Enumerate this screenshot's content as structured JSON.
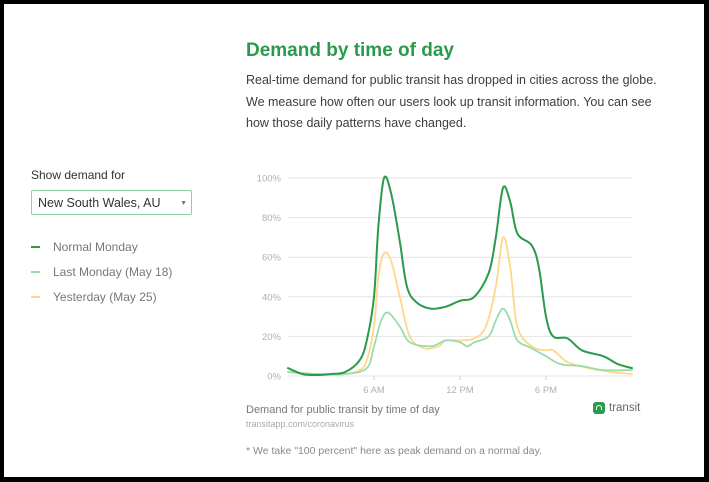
{
  "header": {
    "title": "Demand by time of day",
    "intro": "Real-time demand for public transit has dropped in cities across the globe. We measure how often our users look up transit information. You can see how those daily patterns have changed."
  },
  "controls": {
    "show_label": "Show demand for",
    "region_selected": "New South Wales, AU"
  },
  "legend": [
    {
      "label": "Normal Monday",
      "color": "#2a9a4c"
    },
    {
      "label": "Last Monday (May 18)",
      "color": "#9bdca9"
    },
    {
      "label": "Yesterday (May 25)",
      "color": "#fdd889"
    }
  ],
  "footer": {
    "caption": "Demand for public transit by time of day",
    "source": "transitapp.com/coronavirus",
    "brand": "transit",
    "footnote": "* We take \"100 percent\" here as peak demand on a normal day."
  },
  "chart_data": {
    "type": "line",
    "xlabel": "",
    "ylabel": "",
    "x_range_hours": [
      0,
      24
    ],
    "ylim": [
      0,
      100
    ],
    "y_ticks": [
      "0%",
      "20%",
      "40%",
      "60%",
      "80%",
      "100%"
    ],
    "x_ticks": [
      {
        "hour": 6,
        "label": "6 AM"
      },
      {
        "hour": 12,
        "label": "12 PM"
      },
      {
        "hour": 18,
        "label": "6 PM"
      }
    ],
    "grid": true,
    "series": [
      {
        "name": "Normal Monday",
        "color": "#2a9a4c",
        "points": [
          [
            0,
            4
          ],
          [
            1,
            1
          ],
          [
            2,
            0.5
          ],
          [
            3,
            1
          ],
          [
            4,
            2
          ],
          [
            5,
            8
          ],
          [
            5.5,
            18
          ],
          [
            6,
            40
          ],
          [
            6.3,
            75
          ],
          [
            6.7,
            100
          ],
          [
            7.2,
            92
          ],
          [
            7.8,
            68
          ],
          [
            8.3,
            45
          ],
          [
            9,
            37
          ],
          [
            10,
            34
          ],
          [
            11,
            35
          ],
          [
            12,
            38
          ],
          [
            13,
            40
          ],
          [
            14,
            52
          ],
          [
            14.5,
            70
          ],
          [
            15,
            95
          ],
          [
            15.5,
            88
          ],
          [
            16,
            72
          ],
          [
            17,
            66
          ],
          [
            17.5,
            55
          ],
          [
            18,
            30
          ],
          [
            18.5,
            20
          ],
          [
            19.5,
            19
          ],
          [
            20.5,
            13
          ],
          [
            22,
            10
          ],
          [
            23,
            6
          ],
          [
            24,
            4
          ]
        ]
      },
      {
        "name": "Last Monday (May 18)",
        "color": "#9bdca9",
        "points": [
          [
            0,
            2
          ],
          [
            2,
            1
          ],
          [
            4,
            1
          ],
          [
            5.5,
            4
          ],
          [
            6,
            15
          ],
          [
            6.5,
            28
          ],
          [
            7,
            32
          ],
          [
            7.8,
            25
          ],
          [
            8.5,
            17
          ],
          [
            10,
            15
          ],
          [
            11,
            18
          ],
          [
            12,
            17
          ],
          [
            12.5,
            15
          ],
          [
            13,
            17
          ],
          [
            14,
            20
          ],
          [
            14.5,
            28
          ],
          [
            15,
            34
          ],
          [
            15.5,
            28
          ],
          [
            16,
            18
          ],
          [
            17,
            14
          ],
          [
            18,
            10
          ],
          [
            19,
            6
          ],
          [
            20.5,
            5
          ],
          [
            22,
            3
          ],
          [
            24,
            3
          ]
        ]
      },
      {
        "name": "Yesterday (May 25)",
        "color": "#fdd889",
        "points": [
          [
            0,
            2
          ],
          [
            2,
            1
          ],
          [
            4,
            1
          ],
          [
            5,
            3
          ],
          [
            5.5,
            8
          ],
          [
            6,
            25
          ],
          [
            6.3,
            50
          ],
          [
            6.7,
            62
          ],
          [
            7.2,
            58
          ],
          [
            7.8,
            40
          ],
          [
            8.5,
            20
          ],
          [
            9.5,
            14
          ],
          [
            10.5,
            15
          ],
          [
            11,
            18
          ],
          [
            12,
            18
          ],
          [
            13,
            19
          ],
          [
            13.8,
            25
          ],
          [
            14.5,
            45
          ],
          [
            15,
            70
          ],
          [
            15.5,
            55
          ],
          [
            16,
            25
          ],
          [
            17,
            15
          ],
          [
            18,
            13
          ],
          [
            18.5,
            13
          ],
          [
            19.5,
            7
          ],
          [
            21,
            4
          ],
          [
            22.5,
            2
          ],
          [
            24,
            1
          ]
        ]
      }
    ]
  }
}
